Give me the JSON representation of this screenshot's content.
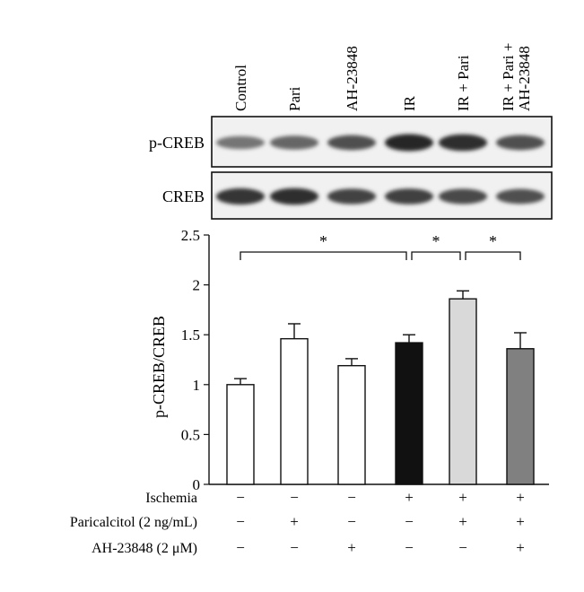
{
  "blot": {
    "lanes": [
      "Control",
      "Pari",
      "AH-23848",
      "IR",
      "IR + Pari",
      [
        "IR + Pari +",
        "AH-23848"
      ]
    ],
    "rows": [
      {
        "label": "p-CREB",
        "intensity": [
          0.55,
          0.62,
          0.72,
          0.92,
          0.88,
          0.72
        ]
      },
      {
        "label": "CREB",
        "intensity": [
          0.85,
          0.88,
          0.78,
          0.8,
          0.75,
          0.72
        ]
      }
    ]
  },
  "chart_data": {
    "type": "bar",
    "title": "",
    "xlabel": "",
    "ylabel": "p-CREB/CREB",
    "ylim": [
      0,
      2.5
    ],
    "yticks": [
      0,
      0.5,
      1,
      1.5,
      2,
      2.5
    ],
    "ytick_labels": [
      "0",
      "0.5",
      "1",
      "1.5",
      "2",
      "2.5"
    ],
    "categories": [
      "Control",
      "Pari",
      "AH-23848",
      "IR",
      "IR + Pari",
      "IR + Pari + AH-23848"
    ],
    "values": [
      1.0,
      1.46,
      1.19,
      1.42,
      1.86,
      1.36
    ],
    "errors": [
      0.06,
      0.15,
      0.07,
      0.08,
      0.08,
      0.16
    ],
    "bar_colors": [
      "#ffffff",
      "#ffffff",
      "#ffffff",
      "#111111",
      "#d9d9d9",
      "#808080"
    ],
    "grid": false,
    "significance": [
      {
        "from": 0,
        "to": 3,
        "label": "*"
      },
      {
        "from": 3,
        "to": 4,
        "label": "*"
      },
      {
        "from": 4,
        "to": 5,
        "label": "*"
      }
    ]
  },
  "conditions": [
    {
      "label": "Ischemia",
      "marks": [
        "−",
        "−",
        "−",
        "+",
        "+",
        "+"
      ]
    },
    {
      "label": "Paricalcitol (2 ng/mL)",
      "marks": [
        "−",
        "+",
        "−",
        "−",
        "+",
        "+"
      ]
    },
    {
      "label": "AH-23848 (2 μM)",
      "marks": [
        "−",
        "−",
        "+",
        "−",
        "−",
        "+"
      ]
    }
  ]
}
